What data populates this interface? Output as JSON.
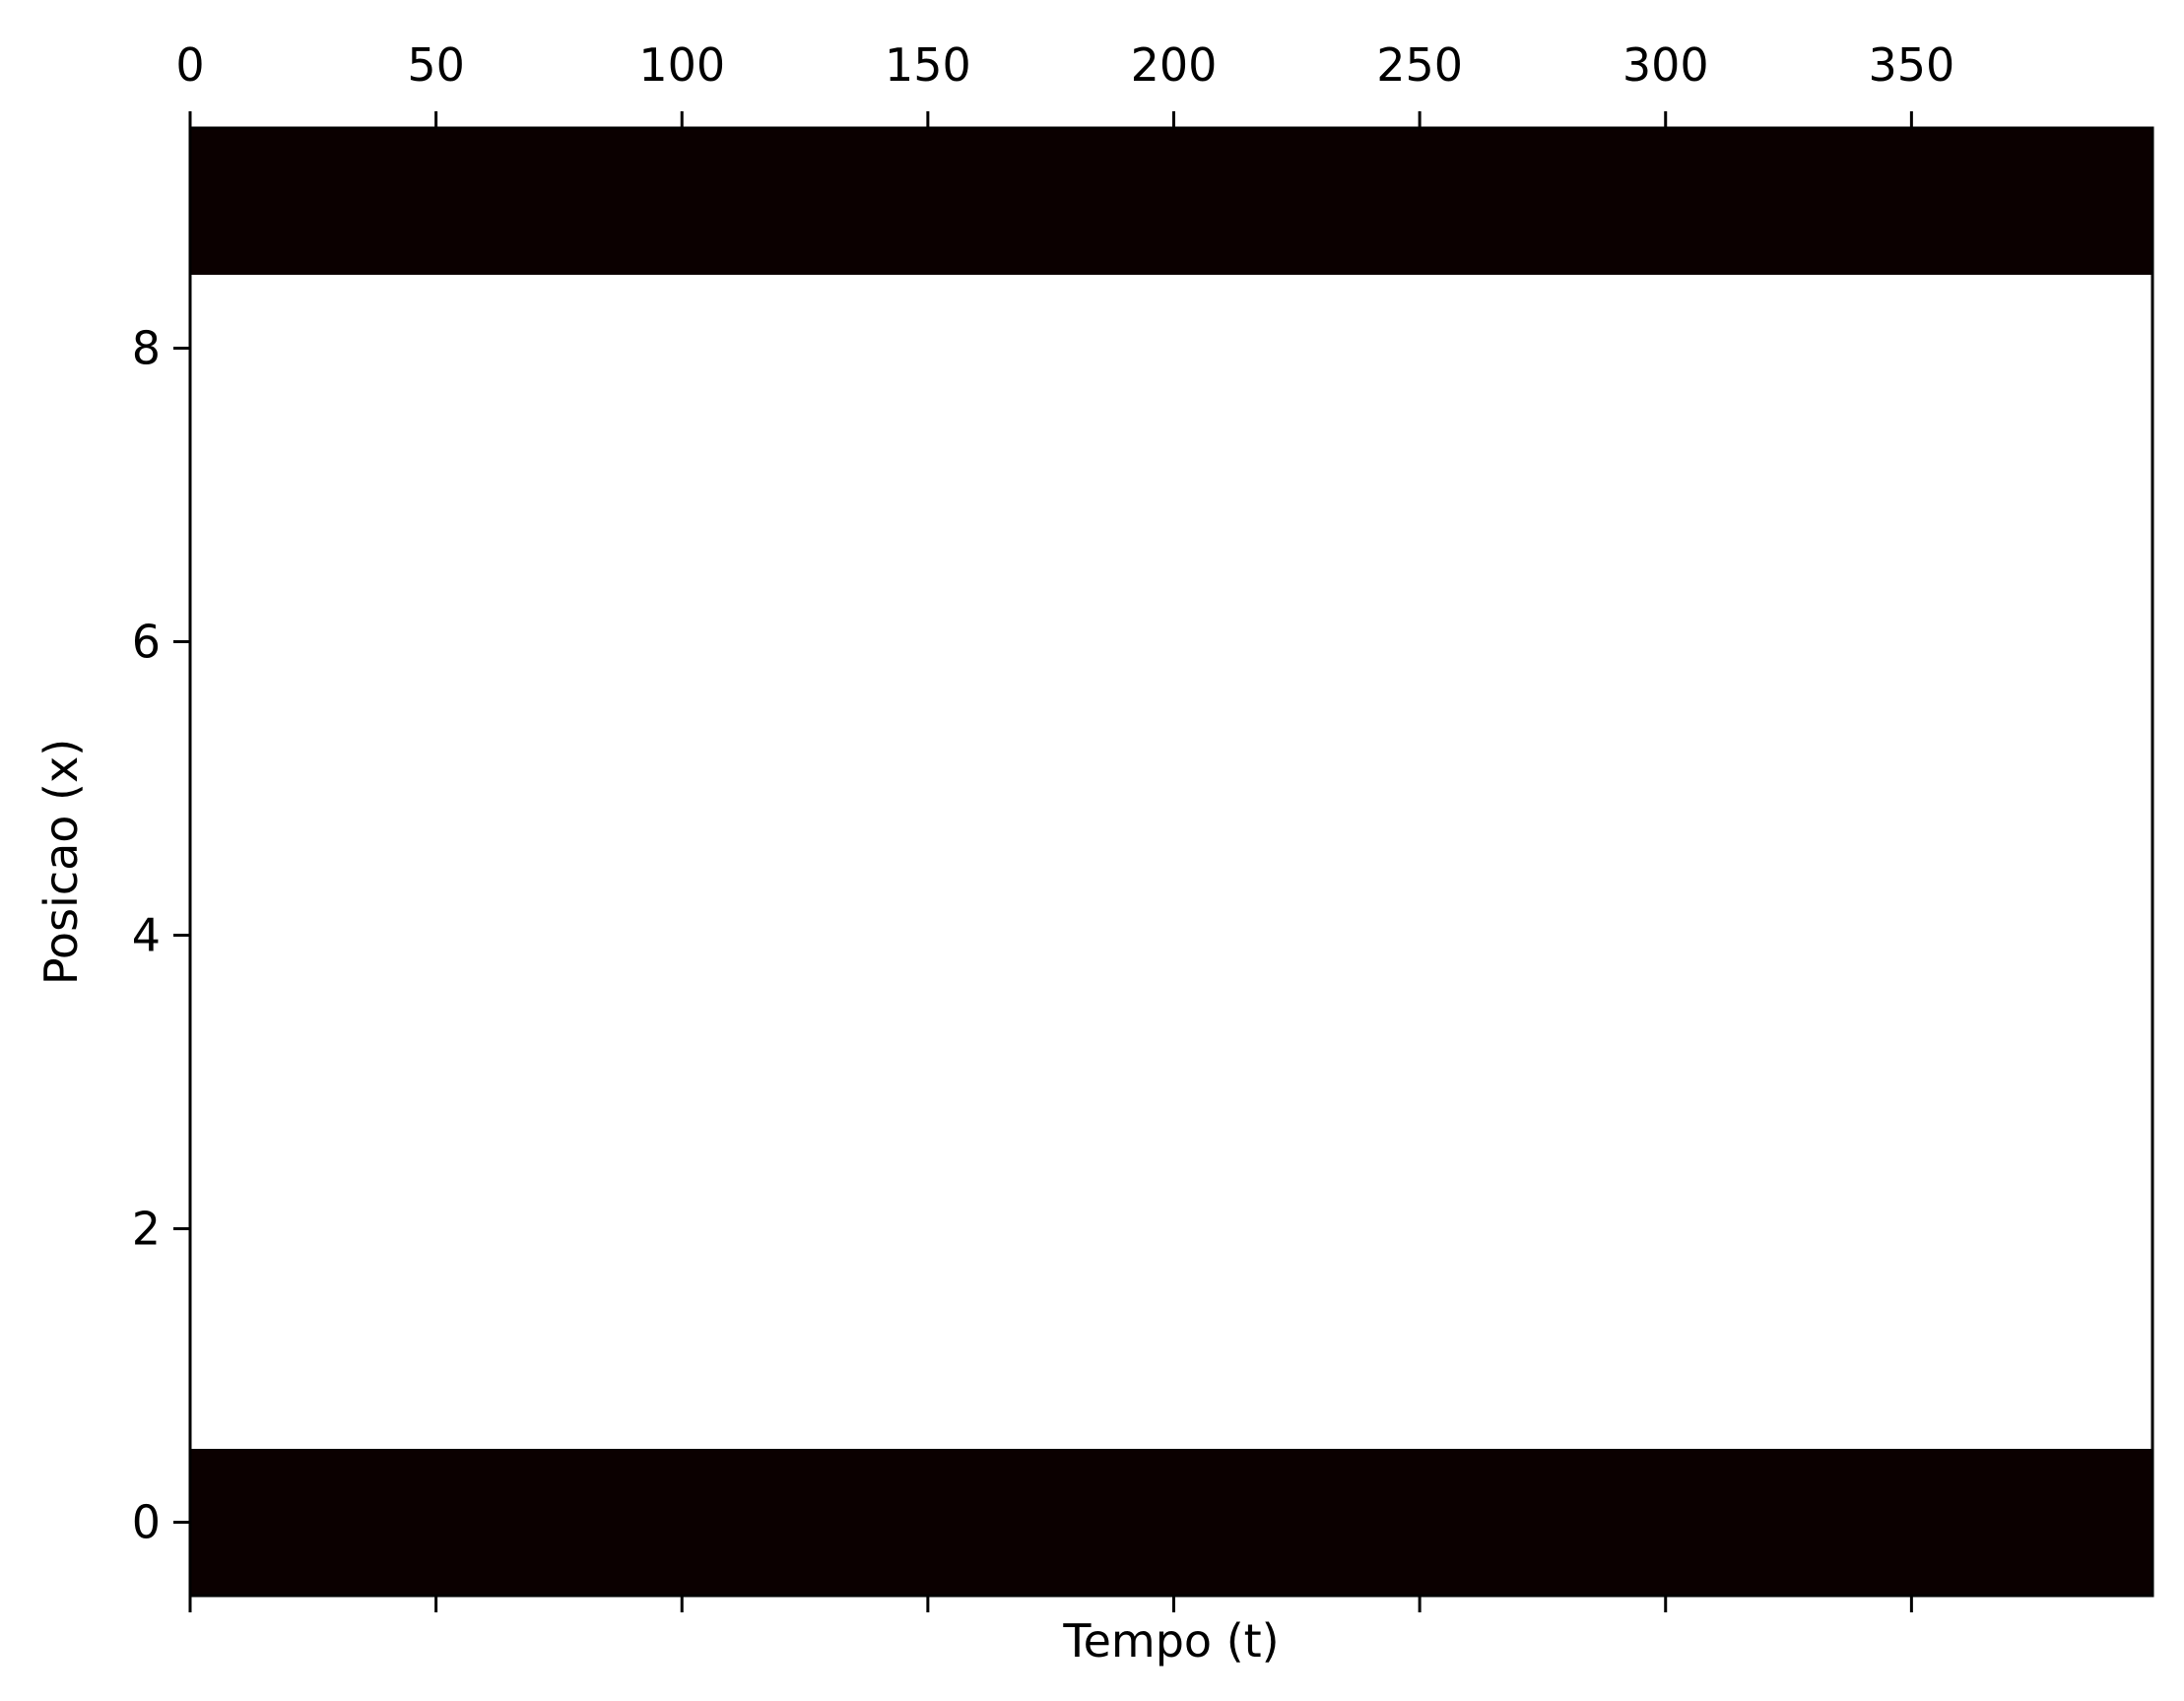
{
  "chart_data": {
    "type": "heatmap",
    "title": "",
    "xlabel": "Tempo (t)",
    "ylabel": "Posicao (x)",
    "xlim": [
      0,
      399
    ],
    "ylim": [
      -0.5,
      9.5
    ],
    "x_ticks": [
      0,
      50,
      100,
      150,
      200,
      250,
      300,
      350
    ],
    "x_tick_labels": [
      "0",
      "50",
      "100",
      "150",
      "200",
      "250",
      "300",
      "350"
    ],
    "y_ticks": [
      0,
      2,
      4,
      6,
      8
    ],
    "y_tick_labels": [
      "0",
      "2",
      "4",
      "6",
      "8"
    ],
    "x_tick_labels_position": "top",
    "grid": false,
    "legend": "none",
    "rows": [
      {
        "x_position": 0,
        "value": 1
      },
      {
        "x_position": 1,
        "value": 0
      },
      {
        "x_position": 2,
        "value": 0
      },
      {
        "x_position": 3,
        "value": 0
      },
      {
        "x_position": 4,
        "value": 0
      },
      {
        "x_position": 5,
        "value": 0
      },
      {
        "x_position": 6,
        "value": 0
      },
      {
        "x_position": 7,
        "value": 0
      },
      {
        "x_position": 8,
        "value": 0
      },
      {
        "x_position": 9,
        "value": 1
      }
    ],
    "colors": {
      "filled": "#0b0000",
      "empty": "#ffffff"
    }
  }
}
